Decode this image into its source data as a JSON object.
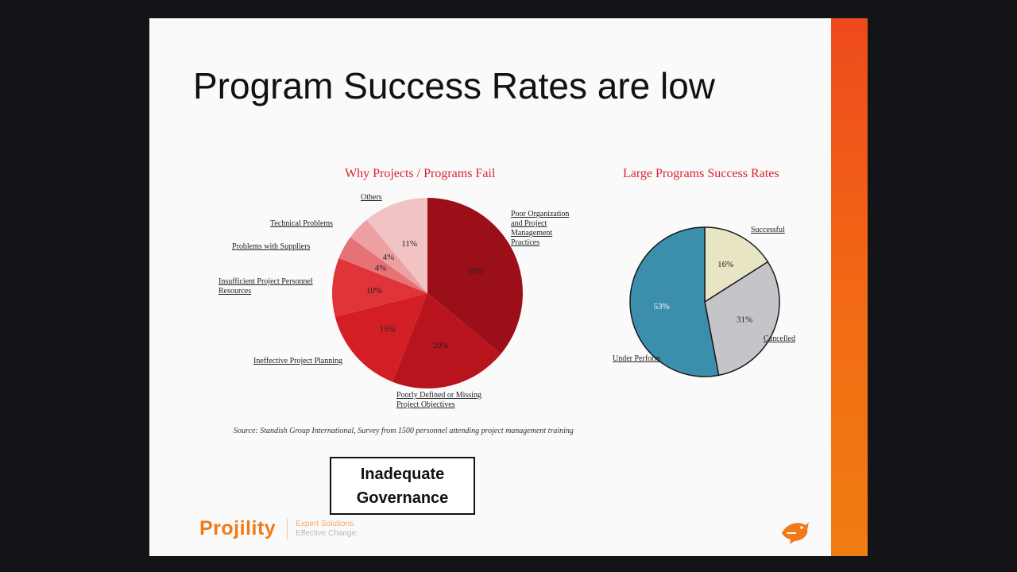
{
  "slide": {
    "title": "Program Success Rates are low",
    "source": "Source: Standish Group International, Survey from 1500 personnel attending project management training",
    "callout": [
      "Inadequate",
      "Governance"
    ],
    "logo": {
      "name": "Projility",
      "tagline1": "Expert Solutions.",
      "tagline2": "Effective Change."
    },
    "accent": "#f06a15"
  },
  "chart_data": [
    {
      "type": "pie",
      "title": "Why Projects / Programs Fail",
      "slices": [
        {
          "label": "Poor Organization and Project Management Practices",
          "value": 36,
          "display": "36%",
          "color": "#9b0f18"
        },
        {
          "label": "Poorly Defined or Missing Project Objectives",
          "value": 20,
          "display": "20%",
          "color": "#b8141d"
        },
        {
          "label": "Ineffective Project Planning",
          "value": 15,
          "display": "15%",
          "color": "#d41e26"
        },
        {
          "label": "Insufficient Project Personnel Resources",
          "value": 10,
          "display": "10%",
          "color": "#e0333a"
        },
        {
          "label": "Problems with Suppliers",
          "value": 4,
          "display": "4%",
          "color": "#e57275"
        },
        {
          "label": "Technical Problems",
          "value": 4,
          "display": "4%",
          "color": "#eda0a2"
        },
        {
          "label": "Others",
          "value": 11,
          "display": "11%",
          "color": "#f2c3c4"
        }
      ]
    },
    {
      "type": "pie",
      "title": "Large Programs Success Rates",
      "slices": [
        {
          "label": "Successful",
          "value": 16,
          "display": "16%",
          "color": "#e8e5c4"
        },
        {
          "label": "Cancelled",
          "value": 31,
          "display": "31%",
          "color": "#c5c4c9"
        },
        {
          "label": "Under Perform",
          "value": 53,
          "display": "53%",
          "color": "#3c8fac"
        }
      ]
    }
  ]
}
